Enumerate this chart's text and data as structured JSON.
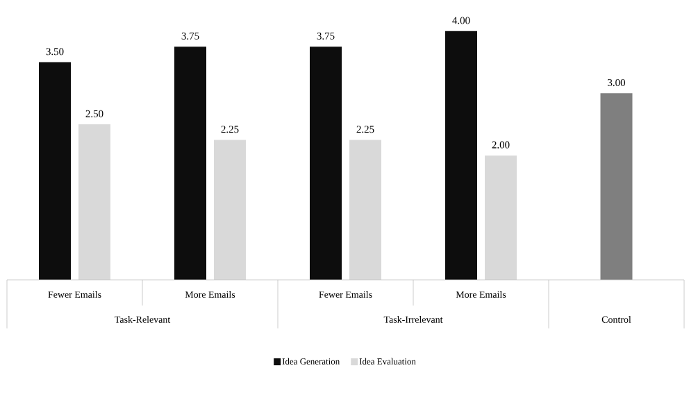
{
  "chart_data": {
    "type": "bar",
    "categories": [
      "Fewer Emails",
      "More Emails",
      "Fewer Emails",
      "More Emails",
      null
    ],
    "series": [
      {
        "name": "Idea Generation",
        "color": "#0d0d0d",
        "colors": [
          "#0d0d0d",
          "#0d0d0d",
          "#0d0d0d",
          "#0d0d0d",
          "#7f7f7f"
        ],
        "values": [
          3.5,
          3.75,
          3.75,
          4.0,
          3.0
        ],
        "value_labels": [
          "3.50",
          "3.75",
          "3.75",
          "4.00",
          "3.00"
        ]
      },
      {
        "name": "Idea Evaluation",
        "color": "#d9d9d9",
        "values": [
          2.5,
          2.25,
          2.25,
          2.0,
          null
        ],
        "value_labels": [
          "2.50",
          "2.25",
          "2.25",
          "2.00",
          null
        ]
      }
    ],
    "annotations": [
      "Task-Relevant",
      "Task-Irrelevant",
      "Control"
    ],
    "legend": "bottom"
  }
}
